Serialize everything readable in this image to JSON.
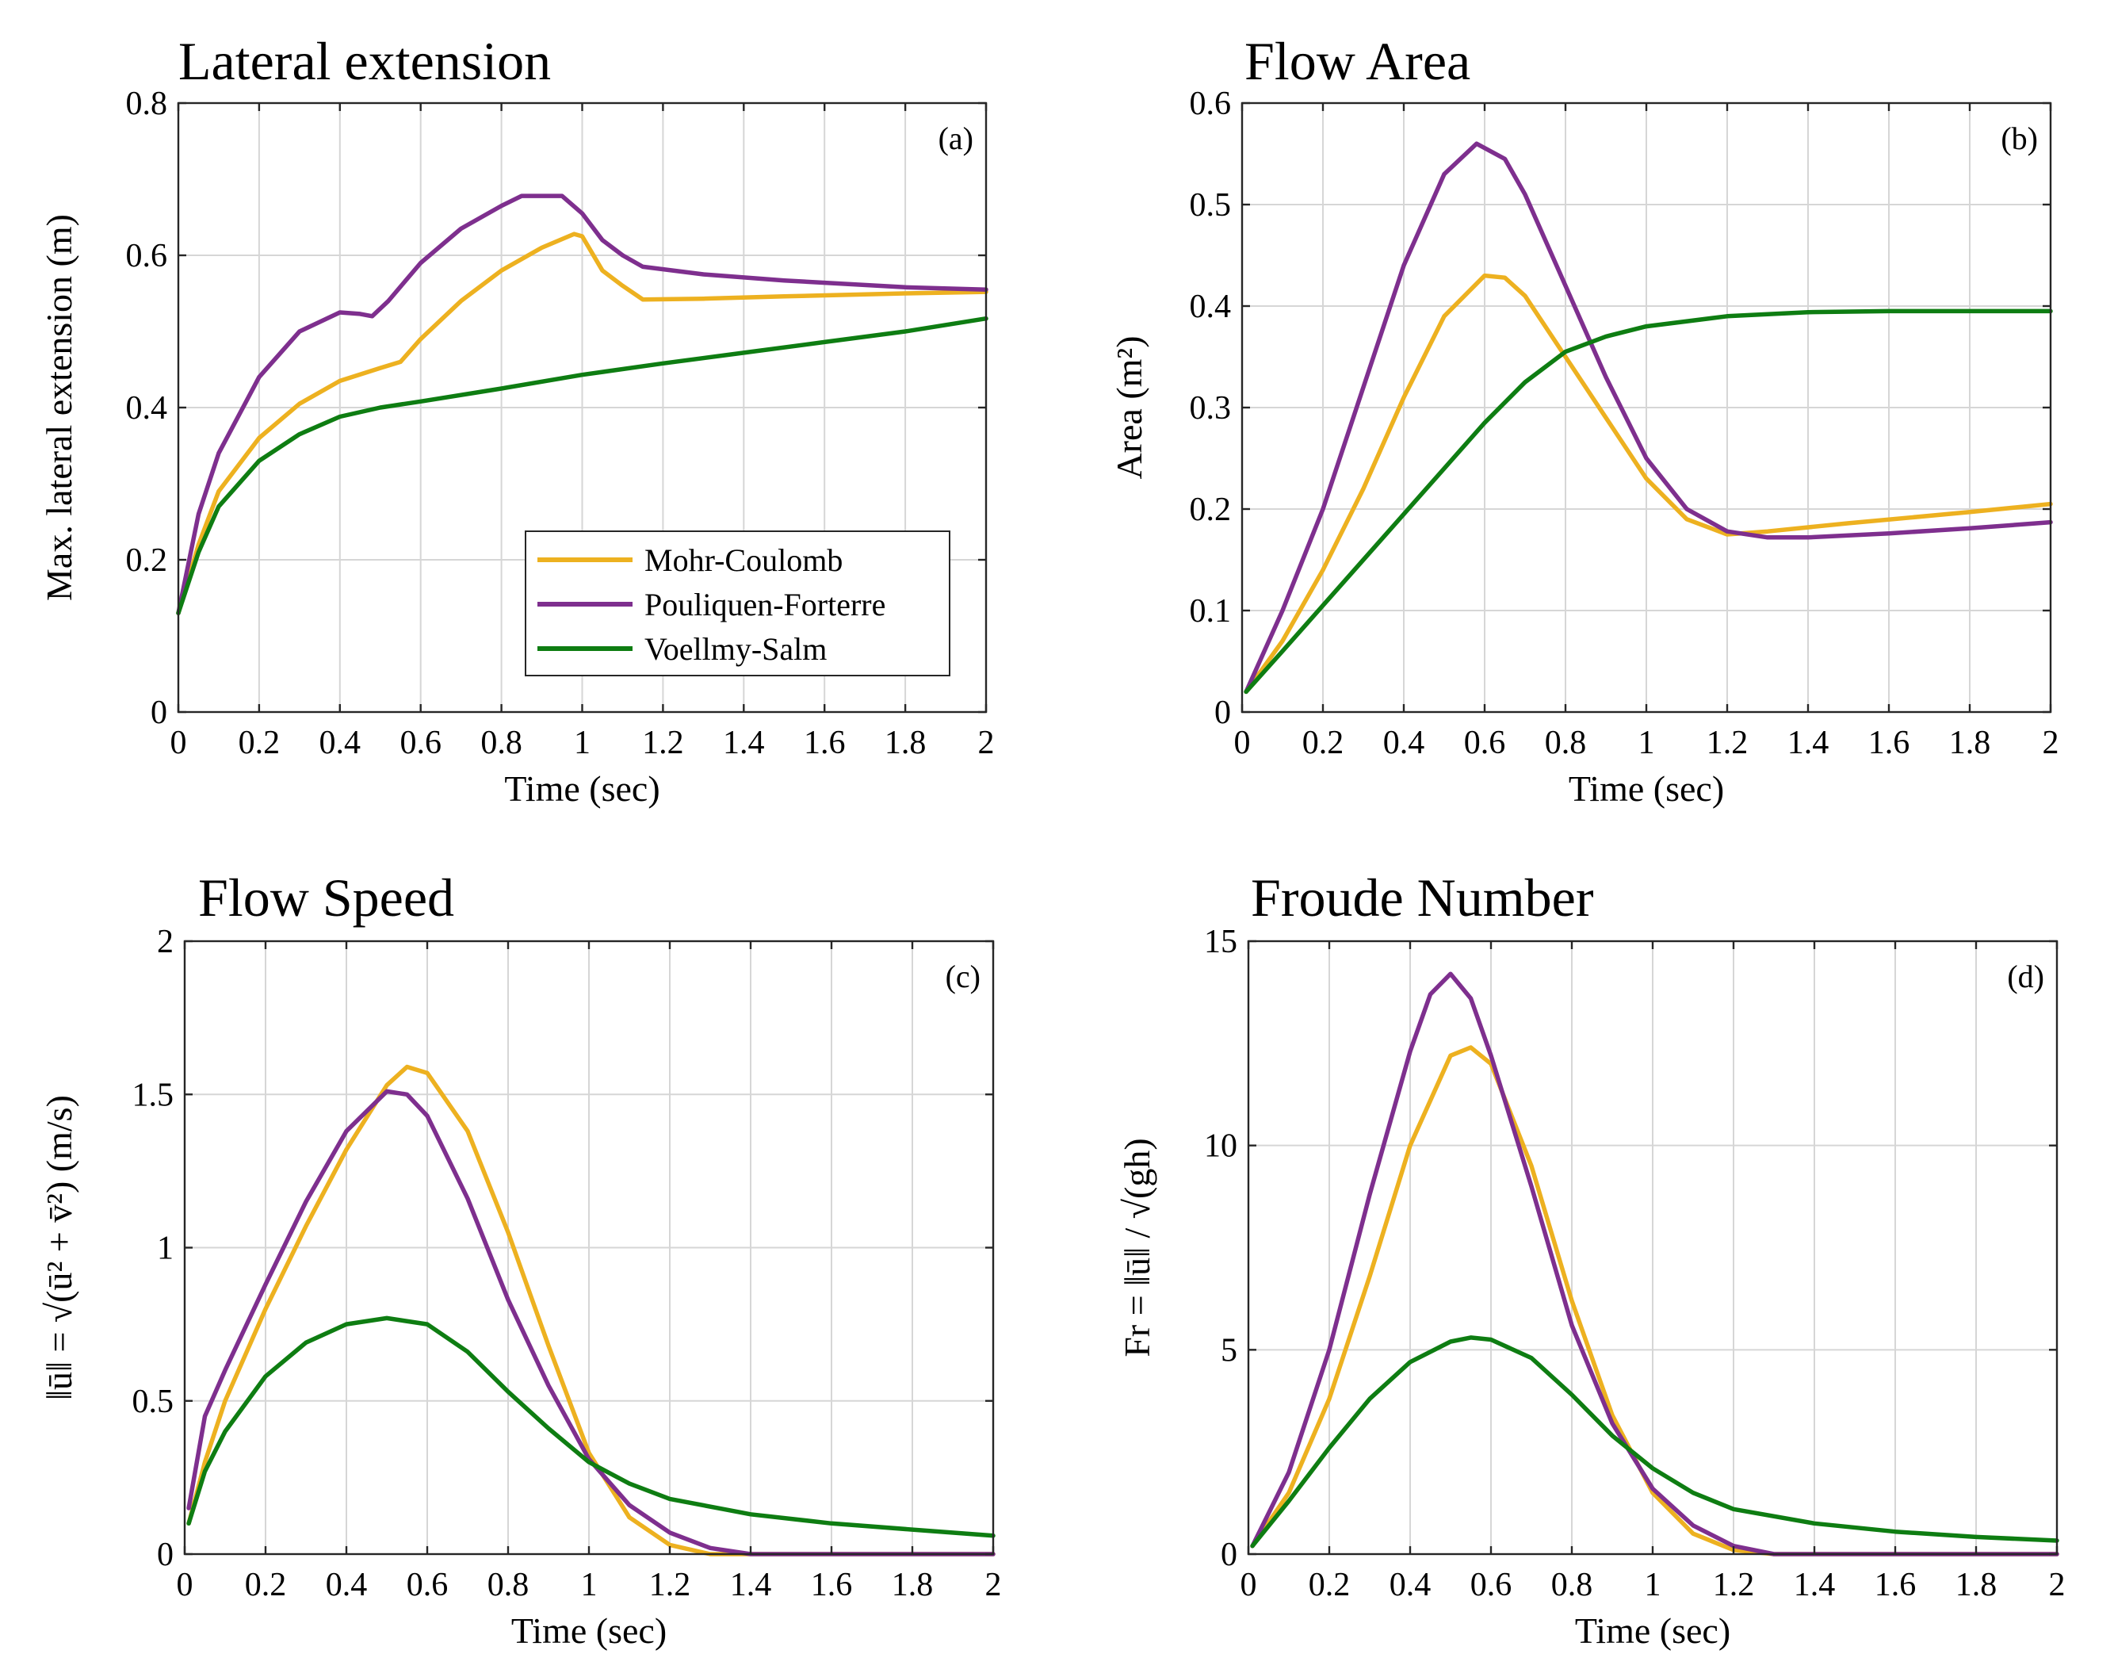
{
  "legend": [
    {
      "name": "Mohr-Coulomb",
      "color": "#EDB120"
    },
    {
      "name": "Pouliquen-Forterre",
      "color": "#7E2F8E"
    },
    {
      "name": "Voellmy-Salm",
      "color": "#0E7D12"
    }
  ],
  "chart_data": [
    {
      "type": "line",
      "title": "Lateral extension",
      "panel_tag": "(a)",
      "xlabel": "Time (sec)",
      "ylabel": "Max. lateral extension (m)",
      "xlim": [
        0,
        2
      ],
      "ylim": [
        0,
        0.8
      ],
      "xticks": [
        0,
        0.2,
        0.4,
        0.6,
        0.8,
        1,
        1.2,
        1.4,
        1.6,
        1.8,
        2
      ],
      "yticks": [
        0,
        0.2,
        0.4,
        0.6,
        0.8
      ],
      "grid": true,
      "legend_position": "bottom-right",
      "series": [
        {
          "name": "Mohr-Coulomb",
          "color": "#EDB120",
          "x": [
            0,
            0.05,
            0.1,
            0.2,
            0.3,
            0.4,
            0.5,
            0.55,
            0.6,
            0.7,
            0.8,
            0.9,
            0.98,
            1.0,
            1.05,
            1.1,
            1.15,
            1.3,
            1.5,
            1.8,
            2.0
          ],
          "y": [
            0.13,
            0.22,
            0.29,
            0.36,
            0.405,
            0.435,
            0.452,
            0.46,
            0.49,
            0.54,
            0.58,
            0.61,
            0.628,
            0.625,
            0.58,
            0.56,
            0.542,
            0.543,
            0.546,
            0.55,
            0.552
          ]
        },
        {
          "name": "Pouliquen-Forterre",
          "color": "#7E2F8E",
          "x": [
            0,
            0.05,
            0.1,
            0.2,
            0.3,
            0.4,
            0.45,
            0.48,
            0.52,
            0.6,
            0.7,
            0.8,
            0.85,
            0.95,
            1.0,
            1.05,
            1.1,
            1.15,
            1.3,
            1.5,
            1.8,
            2.0
          ],
          "y": [
            0.13,
            0.26,
            0.34,
            0.44,
            0.5,
            0.525,
            0.523,
            0.52,
            0.54,
            0.59,
            0.635,
            0.665,
            0.678,
            0.678,
            0.655,
            0.62,
            0.6,
            0.585,
            0.575,
            0.567,
            0.558,
            0.555
          ]
        },
        {
          "name": "Voellmy-Salm",
          "color": "#0E7D12",
          "x": [
            0,
            0.05,
            0.1,
            0.2,
            0.3,
            0.4,
            0.5,
            0.6,
            0.8,
            1.0,
            1.2,
            1.4,
            1.6,
            1.8,
            2.0
          ],
          "y": [
            0.13,
            0.21,
            0.27,
            0.33,
            0.365,
            0.388,
            0.4,
            0.408,
            0.425,
            0.443,
            0.458,
            0.472,
            0.486,
            0.5,
            0.517
          ]
        }
      ]
    },
    {
      "type": "line",
      "title": "Flow Area",
      "panel_tag": "(b)",
      "xlabel": "Time (sec)",
      "ylabel": "Area (m²)",
      "xlim": [
        0,
        2
      ],
      "ylim": [
        0,
        0.6
      ],
      "xticks": [
        0,
        0.2,
        0.4,
        0.6,
        0.8,
        1,
        1.2,
        1.4,
        1.6,
        1.8,
        2
      ],
      "yticks": [
        0,
        0.1,
        0.2,
        0.3,
        0.4,
        0.5,
        0.6
      ],
      "grid": true,
      "series": [
        {
          "name": "Mohr-Coulomb",
          "color": "#EDB120",
          "x": [
            0.01,
            0.1,
            0.2,
            0.3,
            0.4,
            0.5,
            0.6,
            0.65,
            0.7,
            0.8,
            0.9,
            1.0,
            1.1,
            1.2,
            1.3,
            1.5,
            1.8,
            2.0
          ],
          "y": [
            0.02,
            0.07,
            0.14,
            0.22,
            0.31,
            0.39,
            0.43,
            0.428,
            0.41,
            0.35,
            0.29,
            0.23,
            0.19,
            0.175,
            0.178,
            0.186,
            0.197,
            0.205
          ]
        },
        {
          "name": "Pouliquen-Forterre",
          "color": "#7E2F8E",
          "x": [
            0.01,
            0.1,
            0.2,
            0.3,
            0.4,
            0.5,
            0.58,
            0.65,
            0.7,
            0.8,
            0.9,
            1.0,
            1.1,
            1.2,
            1.3,
            1.4,
            1.6,
            1.8,
            2.0
          ],
          "y": [
            0.02,
            0.1,
            0.2,
            0.32,
            0.44,
            0.53,
            0.56,
            0.545,
            0.51,
            0.42,
            0.33,
            0.25,
            0.2,
            0.178,
            0.172,
            0.172,
            0.176,
            0.181,
            0.187
          ]
        },
        {
          "name": "Voellmy-Salm",
          "color": "#0E7D12",
          "x": [
            0.01,
            0.1,
            0.2,
            0.3,
            0.4,
            0.5,
            0.6,
            0.7,
            0.8,
            0.9,
            1.0,
            1.2,
            1.4,
            1.6,
            1.8,
            2.0
          ],
          "y": [
            0.02,
            0.06,
            0.105,
            0.15,
            0.195,
            0.24,
            0.285,
            0.325,
            0.355,
            0.37,
            0.38,
            0.39,
            0.394,
            0.395,
            0.395,
            0.395
          ]
        }
      ]
    },
    {
      "type": "line",
      "title": "Flow Speed",
      "panel_tag": "(c)",
      "xlabel": "Time (sec)",
      "ylabel": "‖ū‖ = √(ū² + v̄²)  (m/s)",
      "xlim": [
        0,
        2
      ],
      "ylim": [
        0,
        2
      ],
      "xticks": [
        0,
        0.2,
        0.4,
        0.6,
        0.8,
        1,
        1.2,
        1.4,
        1.6,
        1.8,
        2
      ],
      "yticks": [
        0,
        0.5,
        1,
        1.5,
        2
      ],
      "grid": true,
      "series": [
        {
          "name": "Mohr-Coulomb",
          "color": "#EDB120",
          "x": [
            0.01,
            0.05,
            0.1,
            0.2,
            0.3,
            0.4,
            0.5,
            0.55,
            0.6,
            0.7,
            0.8,
            0.9,
            1.0,
            1.1,
            1.2,
            1.3,
            1.4,
            1.6,
            2.0
          ],
          "y": [
            0.1,
            0.3,
            0.5,
            0.8,
            1.07,
            1.32,
            1.53,
            1.59,
            1.57,
            1.38,
            1.05,
            0.68,
            0.33,
            0.12,
            0.03,
            0.0,
            0.0,
            0.0,
            0.0
          ]
        },
        {
          "name": "Pouliquen-Forterre",
          "color": "#7E2F8E",
          "x": [
            0.01,
            0.05,
            0.1,
            0.2,
            0.3,
            0.4,
            0.5,
            0.55,
            0.6,
            0.7,
            0.8,
            0.9,
            1.0,
            1.1,
            1.2,
            1.3,
            1.4,
            1.6,
            2.0
          ],
          "y": [
            0.15,
            0.45,
            0.6,
            0.88,
            1.15,
            1.38,
            1.51,
            1.5,
            1.43,
            1.16,
            0.83,
            0.55,
            0.31,
            0.16,
            0.07,
            0.02,
            0.0,
            0.0,
            0.0
          ]
        },
        {
          "name": "Voellmy-Salm",
          "color": "#0E7D12",
          "x": [
            0.01,
            0.05,
            0.1,
            0.2,
            0.3,
            0.4,
            0.5,
            0.6,
            0.7,
            0.8,
            0.9,
            1.0,
            1.1,
            1.2,
            1.4,
            1.6,
            1.8,
            2.0
          ],
          "y": [
            0.1,
            0.27,
            0.4,
            0.58,
            0.69,
            0.75,
            0.77,
            0.75,
            0.66,
            0.53,
            0.41,
            0.3,
            0.23,
            0.18,
            0.13,
            0.1,
            0.08,
            0.06
          ]
        }
      ]
    },
    {
      "type": "line",
      "title": "Froude Number",
      "panel_tag": "(d)",
      "xlabel": "Time (sec)",
      "ylabel": "Fr = ‖ū‖ / √(gh)",
      "xlim": [
        0,
        2
      ],
      "ylim": [
        0,
        15
      ],
      "xticks": [
        0,
        0.2,
        0.4,
        0.6,
        0.8,
        1,
        1.2,
        1.4,
        1.6,
        1.8,
        2
      ],
      "yticks": [
        0,
        5,
        10,
        15
      ],
      "grid": true,
      "series": [
        {
          "name": "Mohr-Coulomb",
          "color": "#EDB120",
          "x": [
            0.01,
            0.1,
            0.2,
            0.3,
            0.4,
            0.5,
            0.55,
            0.6,
            0.7,
            0.8,
            0.9,
            1.0,
            1.1,
            1.2,
            1.3,
            1.4,
            2.0
          ],
          "y": [
            0.2,
            1.5,
            3.8,
            6.8,
            10.0,
            12.2,
            12.4,
            12.0,
            9.5,
            6.2,
            3.4,
            1.5,
            0.5,
            0.1,
            0.0,
            0.0,
            0.0
          ]
        },
        {
          "name": "Pouliquen-Forterre",
          "color": "#7E2F8E",
          "x": [
            0.01,
            0.1,
            0.2,
            0.3,
            0.4,
            0.45,
            0.5,
            0.55,
            0.6,
            0.7,
            0.8,
            0.9,
            1.0,
            1.1,
            1.2,
            1.3,
            1.4,
            2.0
          ],
          "y": [
            0.2,
            2.0,
            5.0,
            8.8,
            12.3,
            13.7,
            14.2,
            13.6,
            12.2,
            9.0,
            5.6,
            3.2,
            1.6,
            0.7,
            0.2,
            0.0,
            0.0,
            0.0
          ]
        },
        {
          "name": "Voellmy-Salm",
          "color": "#0E7D12",
          "x": [
            0.01,
            0.1,
            0.2,
            0.3,
            0.4,
            0.5,
            0.55,
            0.6,
            0.7,
            0.8,
            0.9,
            1.0,
            1.1,
            1.2,
            1.4,
            1.6,
            1.8,
            2.0
          ],
          "y": [
            0.2,
            1.3,
            2.6,
            3.8,
            4.7,
            5.2,
            5.3,
            5.25,
            4.8,
            3.9,
            2.9,
            2.1,
            1.5,
            1.1,
            0.75,
            0.55,
            0.42,
            0.33
          ]
        }
      ]
    }
  ]
}
